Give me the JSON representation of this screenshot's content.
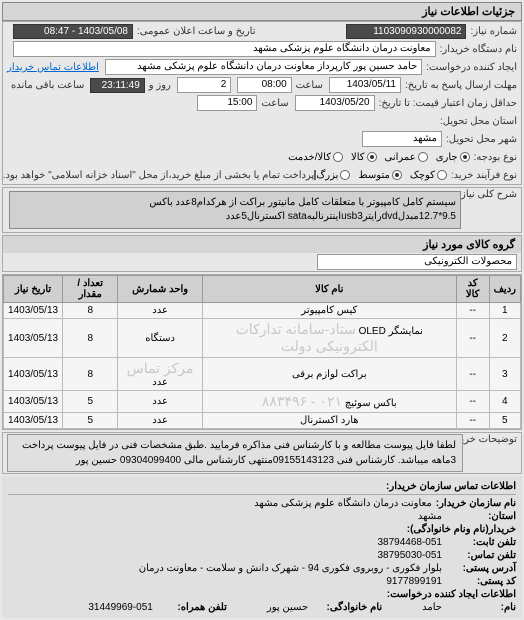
{
  "header": {
    "title": "جزئیات اطلاعات نیاز"
  },
  "fields": {
    "need_number_label": "شماره نیاز:",
    "need_number": "1103090930000082",
    "public_datetime_label": "تاریخ و ساعت اعلان عمومی:",
    "public_datetime": "1403/05/08 - 08:47",
    "buyer_device_label": "نام دستگاه خریدار:",
    "buyer_device": "معاونت درمان دانشگاه علوم پزشکی مشهد",
    "creator_label": "ایجاد کننده درخواست:",
    "creator": "حامد حسین پور کارپرداز معاونت درمان دانشگاه علوم پزشکی مشهد",
    "contact_link": "اطلاعات تماس خریدار",
    "send_deadline_label": "مهلت ارسال پاسخ به تاریخ:",
    "send_date": "1403/05/11",
    "send_time_label": "ساعت",
    "send_time": "08:00",
    "days_label": "روز و",
    "days": "2",
    "remaining_time": "23:11:49",
    "remaining_label": "ساعت باقی مانده",
    "validity_label": "حداقل زمان اعتبار قیمت: تا تاریخ:",
    "validity_date": "1403/05/20",
    "validity_time_label": "ساعت",
    "validity_time": "15:00",
    "origin_label": "استان محل تحویل:",
    "city_label": "شهر محل تحویل:",
    "city": "مشهد",
    "budget_type_label": "نوع بودجه:",
    "purchase_type_label": "نوع فرآیند خرید:",
    "payment_note": "پرداخت تمام یا بخشی از مبلغ خرید،از محل \"اسناد خزانه اسلامی\" خواهد بود.",
    "budget_options": [
      "جاری",
      "عمرانی",
      "کالا",
      "کالا/خدمت"
    ],
    "purchase_options": [
      "کوچک",
      "متوسط",
      "بزرگ"
    ]
  },
  "description": {
    "label": "شرح کلی نیاز:",
    "text": "سیستم کامل کامپیوتر با متعلقات کامل مانیتور براکت از هرکدام8عدد باکس 9.5*12.7مبدلdvdرایترusb3اینترنالبهsata اکسترنال5عدد"
  },
  "group": {
    "label": "گروه کالای مورد نیاز",
    "value": "محصولات الکترونیکی"
  },
  "table": {
    "headers": [
      "ردیف",
      "کد کالا",
      "نام کالا",
      "واحد شمارش",
      "تعداد / مقدار",
      "تاریخ نیاز"
    ],
    "rows": [
      [
        "1",
        "--",
        "کیس کامپیوتر",
        "عدد",
        "8",
        "1403/05/13"
      ],
      [
        "2",
        "--",
        "نمایشگر OLED",
        "دستگاه",
        "8",
        "1403/05/13"
      ],
      [
        "3",
        "--",
        "براکت لوازم برقی",
        "عدد",
        "8",
        "1403/05/13"
      ],
      [
        "4",
        "--",
        "باکس سوئیچ",
        "عدد",
        "5",
        "1403/05/13"
      ],
      [
        "5",
        "--",
        "هارد اکسترنال",
        "عدد",
        "5",
        "1403/05/13"
      ]
    ],
    "watermark1": "ستاد-سامانه تدارکات الکترونیکی دولت",
    "watermark2": "۰۲۱ - ۸۸۳۴۹۶",
    "watermark3": "مرکز تماس"
  },
  "notes": {
    "label": "توضیحات خریدار:",
    "text": "لطفا فایل پیوست مطالعه و با کارشناس فنی مذاکره فرمایید .طبق مشخصات فنی در فایل پیوست پرداخت 3ماهه میباشد. کارشناس فنی 09155143123منتهی کارشناس مالی 09304099400 حسین پور"
  },
  "contact": {
    "header": "اطلاعات تماس سازمان خریدار:",
    "org_label": "نام سازمان خریدار:",
    "org": "معاونت درمان دانشگاه علوم پزشکی مشهد",
    "province_label": "استان:",
    "province": "مشهد",
    "buyer_name_label": "خریدار(نام ونام خانوادگی):",
    "phone_label": "تلفن ثابت:",
    "phone": "38794468-051",
    "fax_label": "تلفن تماس:",
    "fax": "38795030-051",
    "address_label": "آدرس پستی:",
    "address": "بلوار فکوری - روبروی فکوری 94 - شهرک دانش و سلامت - معاونت درمان",
    "postal_label": "کد پستی:",
    "postal": "9177899191",
    "creator_info_label": "اطلاعات ایجاد کننده درخواست:",
    "name_label": "نام:",
    "name": "حامد",
    "family_label": "نام خانوادگی:",
    "family": "حسین پور",
    "mobile_label": "تلفن همراه:",
    "mobile": "31449969-051"
  }
}
